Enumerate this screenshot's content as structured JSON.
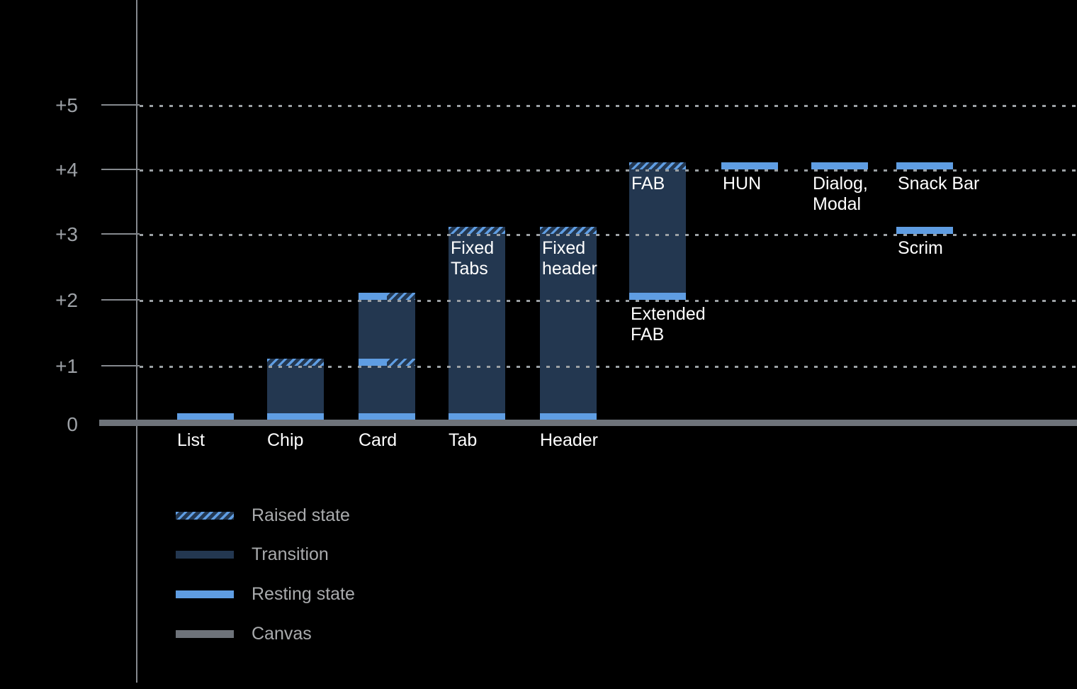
{
  "chart_data": {
    "type": "bar",
    "description": "Elevation diagram: UI components plotted against elevation levels 0 to +5",
    "background": "#000000",
    "grid": true,
    "legend_position": "bottom-left",
    "y_axis": {
      "min": 0,
      "max": 5,
      "ticks": [
        {
          "label": "+5",
          "value": 5
        },
        {
          "label": "+4",
          "value": 4
        },
        {
          "label": "+3",
          "value": 3
        },
        {
          "label": "+2",
          "value": 2
        },
        {
          "label": "+1",
          "value": 1
        },
        {
          "label": "0",
          "value": 0
        }
      ]
    },
    "components": [
      {
        "name": "list",
        "axis_label": "List",
        "segments": [
          {
            "kind": "resting",
            "level": 0
          }
        ]
      },
      {
        "name": "chip",
        "axis_label": "Chip",
        "segments": [
          {
            "kind": "resting",
            "level": 0
          },
          {
            "kind": "transition",
            "from": 0,
            "to": 1
          },
          {
            "kind": "raised",
            "level": 1
          }
        ]
      },
      {
        "name": "card",
        "axis_label": "Card",
        "segments": [
          {
            "kind": "resting",
            "level": 0
          },
          {
            "kind": "transition",
            "from": 0,
            "to": 2
          },
          {
            "kind": "resting_raised",
            "level": 1
          },
          {
            "kind": "resting_raised",
            "level": 2
          }
        ]
      },
      {
        "name": "tab",
        "axis_label": "Tab",
        "segments": [
          {
            "kind": "resting",
            "level": 0
          },
          {
            "kind": "transition",
            "from": 0,
            "to": 3
          },
          {
            "kind": "raised",
            "level": 3
          }
        ],
        "labels": [
          {
            "lines": [
              "Fixed",
              "Tabs"
            ],
            "placement": "inside",
            "level": 3
          }
        ]
      },
      {
        "name": "header",
        "axis_label": "Header",
        "segments": [
          {
            "kind": "resting",
            "level": 0
          },
          {
            "kind": "transition",
            "from": 0,
            "to": 3
          },
          {
            "kind": "raised",
            "level": 3
          }
        ],
        "labels": [
          {
            "lines": [
              "Fixed",
              "header"
            ],
            "placement": "inside",
            "level": 3
          }
        ]
      },
      {
        "name": "extended-fab",
        "segments": [
          {
            "kind": "resting",
            "level": 2
          },
          {
            "kind": "transition",
            "from": 2,
            "to": 4
          },
          {
            "kind": "raised",
            "level": 4
          }
        ],
        "labels": [
          {
            "lines": [
              "FAB"
            ],
            "placement": "inside",
            "level": 4
          },
          {
            "lines": [
              "Extended",
              "FAB"
            ],
            "placement": "below",
            "level": 2
          }
        ]
      },
      {
        "name": "hun",
        "segments": [
          {
            "kind": "resting",
            "level": 4
          }
        ],
        "labels": [
          {
            "lines": [
              "HUN"
            ],
            "placement": "below",
            "level": 4
          }
        ]
      },
      {
        "name": "dialog-modal",
        "segments": [
          {
            "kind": "resting",
            "level": 4
          }
        ],
        "labels": [
          {
            "lines": [
              "Dialog,",
              "Modal"
            ],
            "placement": "below",
            "level": 4
          }
        ]
      },
      {
        "name": "snack-bar",
        "segments": [
          {
            "kind": "resting",
            "level": 4
          }
        ],
        "labels": [
          {
            "lines": [
              "Snack Bar"
            ],
            "placement": "below",
            "level": 4
          }
        ]
      },
      {
        "name": "scrim",
        "segments": [
          {
            "kind": "resting",
            "level": 3
          }
        ],
        "labels": [
          {
            "lines": [
              "Scrim"
            ],
            "placement": "below",
            "level": 3
          }
        ]
      }
    ],
    "legend": [
      {
        "label": "Raised state",
        "swatch": "raised"
      },
      {
        "label": "Transition",
        "swatch": "transition"
      },
      {
        "label": "Resting state",
        "swatch": "resting"
      },
      {
        "label": "Canvas",
        "swatch": "canvas"
      }
    ],
    "colors": {
      "resting": "#5f9de2",
      "transition": "#233750",
      "canvas": "#6e737a",
      "axis": "#85898e",
      "grid_dots": "#9ba0a4",
      "tick_label": "#9da1a6",
      "legend_text": "#a9abad",
      "bar_label": "#ffffff",
      "background": "#000000"
    }
  }
}
